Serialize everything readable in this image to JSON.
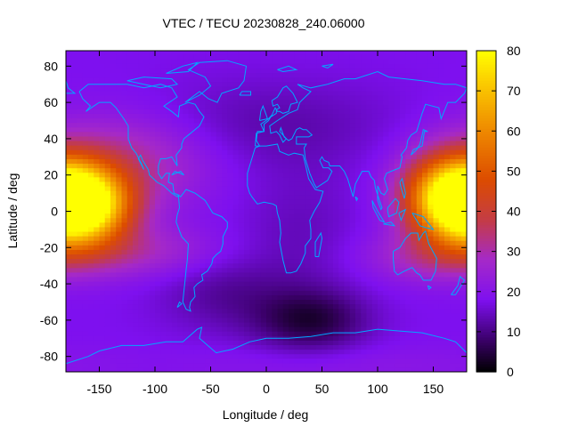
{
  "chart_data": {
    "type": "heatmap",
    "title": "VTEC / TECU 20230828_240.06000",
    "xlabel": "Longitude / deg",
    "ylabel": "Latitude / deg",
    "xlim": [
      -180,
      180
    ],
    "ylim": [
      -88.5,
      88.5
    ],
    "x_ticks": [
      -150,
      -100,
      -50,
      0,
      50,
      100,
      150
    ],
    "y_ticks": [
      -80,
      -60,
      -40,
      -20,
      0,
      20,
      40,
      60,
      80
    ],
    "colorbar": {
      "range": [
        0,
        80
      ],
      "ticks": [
        0,
        10,
        20,
        30,
        40,
        50,
        60,
        70,
        80
      ],
      "palette": [
        {
          "v": 0,
          "color": "#000000"
        },
        {
          "v": 8,
          "color": "#3a0068"
        },
        {
          "v": 18,
          "color": "#7e10ef"
        },
        {
          "v": 28,
          "color": "#a529c8"
        },
        {
          "v": 38,
          "color": "#c43c44"
        },
        {
          "v": 48,
          "color": "#dc4c00"
        },
        {
          "v": 60,
          "color": "#ee8800"
        },
        {
          "v": 72,
          "color": "#fbcb00"
        },
        {
          "v": 80,
          "color": "#ffff00"
        }
      ]
    },
    "tec_grid": {
      "lon_step": 5,
      "lat_step": 2.5,
      "background": 18,
      "features": [
        {
          "lon": -165,
          "lat": 3,
          "dlon": 30,
          "dlat": 14,
          "amp": 60
        },
        {
          "lon": 168,
          "lat": 8,
          "dlon": 30,
          "dlat": 16,
          "amp": 54
        },
        {
          "lon": -130,
          "lat": 28,
          "dlon": 55,
          "dlat": 18,
          "amp": 14
        },
        {
          "lon": -120,
          "lat": -22,
          "dlon": 55,
          "dlat": 10,
          "amp": 10
        },
        {
          "lon": 150,
          "lat": -25,
          "dlon": 45,
          "dlat": 10,
          "amp": 10
        },
        {
          "lon": 0,
          "lat": 48,
          "dlon": 85,
          "dlat": 18,
          "amp": -5
        },
        {
          "lon": 40,
          "lat": -60,
          "dlon": 35,
          "dlat": 12,
          "amp": -13
        },
        {
          "lon": -40,
          "lat": -45,
          "dlon": 40,
          "dlat": 15,
          "amp": -6
        },
        {
          "lon": 30,
          "lat": -15,
          "dlon": 40,
          "dlat": 28,
          "amp": -4
        },
        {
          "lon": 80,
          "lat": -85,
          "dlon": 120,
          "dlat": 8,
          "amp": 3
        }
      ]
    },
    "coastline_color": "#00a8ff"
  }
}
